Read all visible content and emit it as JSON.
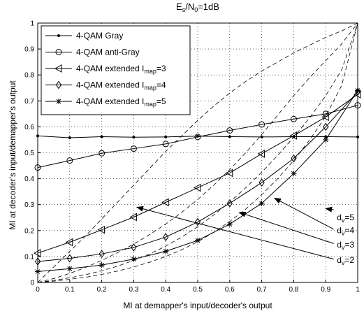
{
  "chart_data": {
    "type": "line",
    "title": "E_s/N_0=1dB",
    "title_parts": {
      "main": "E",
      "sub1": "s",
      "mid": "/N",
      "sub2": "0",
      "tail": "=1dB"
    },
    "xlabel": "MI at demapper's input/decoder's output",
    "ylabel": "MI at decoder's input/demapper's output",
    "xlim": [
      0,
      1
    ],
    "ylim": [
      0,
      1
    ],
    "xticks": [
      "0",
      "0.1",
      "0.2",
      "0.3",
      "0.4",
      "0.5",
      "0.6",
      "0.7",
      "0.8",
      "0.9",
      "1"
    ],
    "yticks": [
      "0",
      "0.1",
      "0.2",
      "0.3",
      "0.4",
      "0.5",
      "0.6",
      "0.7",
      "0.8",
      "0.9",
      "1"
    ],
    "grid": true,
    "legend_position": "top-left",
    "x": [
      0,
      0.1,
      0.2,
      0.3,
      0.4,
      0.5,
      0.6,
      0.7,
      0.8,
      0.9,
      1.0
    ],
    "series": [
      {
        "name": "4-QAM Gray",
        "marker": "dot",
        "values": [
          0.565,
          0.558,
          0.562,
          0.56,
          0.561,
          0.564,
          0.562,
          0.561,
          0.562,
          0.562,
          0.561
        ]
      },
      {
        "name": "4-QAM anti-Gray",
        "marker": "circle",
        "values": [
          0.443,
          0.47,
          0.498,
          0.516,
          0.534,
          0.561,
          0.586,
          0.609,
          0.63,
          0.65,
          0.683
        ]
      },
      {
        "name": "4-QAM extended I_map=3",
        "name_parts": {
          "main": "4-QAM extended I",
          "sub": "map",
          "tail": "=3"
        },
        "marker": "triangle-left",
        "values": [
          0.113,
          0.155,
          0.203,
          0.252,
          0.309,
          0.365,
          0.422,
          0.496,
          0.566,
          0.638,
          0.725
        ]
      },
      {
        "name": "4-QAM extended I_map=4",
        "name_parts": {
          "main": "4-QAM extended I",
          "sub": "map",
          "tail": "=4"
        },
        "marker": "diamond",
        "values": [
          0.081,
          0.093,
          0.11,
          0.135,
          0.175,
          0.233,
          0.305,
          0.385,
          0.478,
          0.6,
          0.735
        ]
      },
      {
        "name": "4-QAM extended I_map=5",
        "name_parts": {
          "main": "4-QAM extended I",
          "sub": "map",
          "tail": "=5"
        },
        "marker": "star",
        "values": [
          0.042,
          0.053,
          0.067,
          0.09,
          0.12,
          0.162,
          0.225,
          0.305,
          0.42,
          0.55,
          0.74
        ]
      }
    ],
    "dashed_curves": [
      {
        "x": [
          0,
          0.05,
          0.1,
          0.15,
          0.2,
          0.25,
          0.3,
          0.35,
          0.4,
          0.45,
          0.5,
          0.55,
          0.6,
          0.65,
          0.7,
          0.75,
          0.8,
          0.85,
          0.9,
          0.95,
          1.0
        ],
        "y": [
          0.0,
          0.06,
          0.12,
          0.18,
          0.245,
          0.31,
          0.375,
          0.44,
          0.505,
          0.565,
          0.625,
          0.68,
          0.73,
          0.775,
          0.815,
          0.85,
          0.885,
          0.915,
          0.945,
          0.97,
          1.0
        ]
      },
      {
        "x": [
          0,
          0.05,
          0.1,
          0.15,
          0.2,
          0.25,
          0.3,
          0.35,
          0.4,
          0.45,
          0.5,
          0.55,
          0.6,
          0.65,
          0.7,
          0.75,
          0.8,
          0.85,
          0.9,
          0.95,
          1.0
        ],
        "y": [
          0.0,
          0.015,
          0.035,
          0.058,
          0.085,
          0.115,
          0.148,
          0.185,
          0.225,
          0.27,
          0.32,
          0.375,
          0.435,
          0.5,
          0.57,
          0.645,
          0.72,
          0.79,
          0.855,
          0.92,
          1.0
        ]
      },
      {
        "x": [
          0,
          0.05,
          0.1,
          0.15,
          0.2,
          0.25,
          0.3,
          0.35,
          0.4,
          0.45,
          0.5,
          0.55,
          0.6,
          0.65,
          0.7,
          0.75,
          0.8,
          0.85,
          0.9,
          0.95,
          1.0
        ],
        "y": [
          0.0,
          0.008,
          0.018,
          0.03,
          0.045,
          0.063,
          0.085,
          0.11,
          0.14,
          0.175,
          0.215,
          0.26,
          0.31,
          0.365,
          0.425,
          0.49,
          0.56,
          0.635,
          0.72,
          0.82,
          1.0
        ]
      },
      {
        "x": [
          0,
          0.05,
          0.1,
          0.15,
          0.2,
          0.25,
          0.3,
          0.35,
          0.4,
          0.45,
          0.5,
          0.55,
          0.6,
          0.65,
          0.7,
          0.75,
          0.8,
          0.85,
          0.9,
          0.95,
          1.0
        ],
        "y": [
          0.0,
          0.005,
          0.012,
          0.02,
          0.031,
          0.044,
          0.06,
          0.078,
          0.1,
          0.126,
          0.157,
          0.193,
          0.235,
          0.283,
          0.338,
          0.4,
          0.47,
          0.55,
          0.64,
          0.76,
          1.0
        ]
      }
    ],
    "annotations": [
      {
        "label": "d_v=5",
        "parts": {
          "main": "d",
          "sub": "v",
          "tail": "=5"
        },
        "text_at": [
          0.935,
          0.24
        ],
        "arrow_from": [
          0.925,
          0.28
        ],
        "arrow_to": [
          0.9,
          0.285
        ]
      },
      {
        "label": "d_v=4",
        "parts": {
          "main": "d",
          "sub": "v",
          "tail": "=4"
        },
        "text_at": [
          0.935,
          0.19
        ],
        "arrow_from": [
          0.925,
          0.205
        ],
        "arrow_to": [
          0.74,
          0.325
        ]
      },
      {
        "label": "d_v=3",
        "parts": {
          "main": "d",
          "sub": "v",
          "tail": "=3"
        },
        "text_at": [
          0.935,
          0.135
        ],
        "arrow_from": [
          0.925,
          0.15
        ],
        "arrow_to": [
          0.63,
          0.27
        ]
      },
      {
        "label": "d_v=2",
        "parts": {
          "main": "d",
          "sub": "v",
          "tail": "=2"
        },
        "text_at": [
          0.935,
          0.075
        ],
        "arrow_from": [
          0.925,
          0.09
        ],
        "arrow_to": [
          0.31,
          0.29
        ]
      }
    ]
  }
}
